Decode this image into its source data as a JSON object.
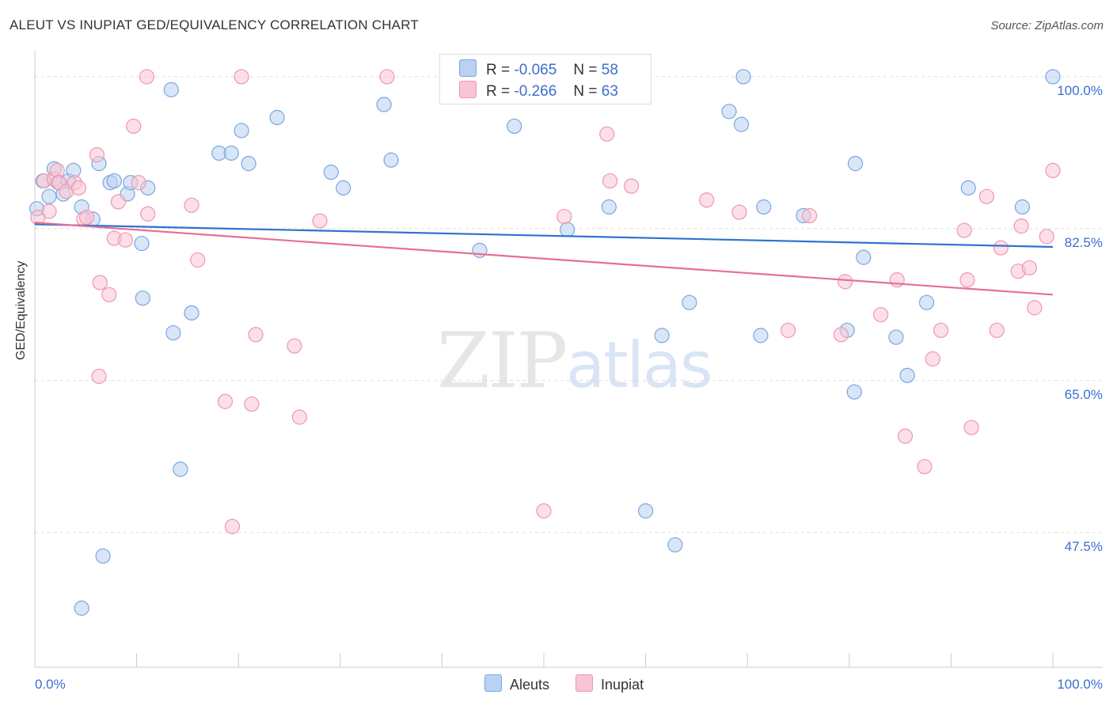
{
  "title": "ALEUT VS INUPIAT GED/EQUIVALENCY CORRELATION CHART",
  "source": "Source: ZipAtlas.com",
  "watermark": {
    "zip": "ZIP",
    "atlas": "atlas"
  },
  "colors": {
    "aleut_fill": "#b9d2f3",
    "aleut_stroke": "#7ba6e0",
    "aleut_line": "#2d74d0",
    "inupiat_fill": "#f9c4d4",
    "inupiat_stroke": "#ee97b3",
    "inupiat_line": "#e56f98",
    "grid": "#dddddd",
    "tick_label": "#3a6fcf"
  },
  "legend": {
    "aleut": {
      "r_label": "R =",
      "r_value": "-0.065",
      "n_label": "N =",
      "n_value": "58"
    },
    "inupiat": {
      "r_label": "R =",
      "r_value": "-0.266",
      "n_label": "N =",
      "n_value": "63"
    }
  },
  "chart_data": {
    "type": "scatter",
    "title": "ALEUT VS INUPIAT GED/EQUIVALENCY CORRELATION CHART",
    "xlabel": "",
    "ylabel": "GED/Equivalency",
    "xlim": [
      0,
      100
    ],
    "ylim": [
      32,
      103
    ],
    "x_tick_labels": [
      "0.0%",
      "100.0%"
    ],
    "y_ticks": [
      47.5,
      65.0,
      82.5,
      100.0
    ],
    "y_tick_labels": [
      "47.5%",
      "65.0%",
      "82.5%",
      "100.0%"
    ],
    "grid": true,
    "legend_position": "top-center",
    "series": [
      {
        "name": "Aleuts",
        "trend": {
          "x": [
            0,
            100
          ],
          "y": [
            83.0,
            80.4
          ]
        },
        "points": [
          [
            0.2,
            84.8
          ],
          [
            0.8,
            88.0
          ],
          [
            1.4,
            86.2
          ],
          [
            1.9,
            89.4
          ],
          [
            2.3,
            87.8
          ],
          [
            2.8,
            86.5
          ],
          [
            3.3,
            88.0
          ],
          [
            3.8,
            89.2
          ],
          [
            4.6,
            85.0
          ],
          [
            5.7,
            83.6
          ],
          [
            6.3,
            90.0
          ],
          [
            7.4,
            87.8
          ],
          [
            7.8,
            88.0
          ],
          [
            9.1,
            86.5
          ],
          [
            9.4,
            87.8
          ],
          [
            10.5,
            80.8
          ],
          [
            10.6,
            74.5
          ],
          [
            11.1,
            87.2
          ],
          [
            13.4,
            98.5
          ],
          [
            13.6,
            70.5
          ],
          [
            15.4,
            72.8
          ],
          [
            18.1,
            91.2
          ],
          [
            19.3,
            91.2
          ],
          [
            20.3,
            93.8
          ],
          [
            21.0,
            90.0
          ],
          [
            23.8,
            95.3
          ],
          [
            29.1,
            89.0
          ],
          [
            30.3,
            87.2
          ],
          [
            34.3,
            96.8
          ],
          [
            35.0,
            90.4
          ],
          [
            47.1,
            94.3
          ],
          [
            56.4,
            85.0
          ],
          [
            52.3,
            82.4
          ],
          [
            55.5,
            100.0
          ],
          [
            61.6,
            70.2
          ],
          [
            64.3,
            74.0
          ],
          [
            69.6,
            100.0
          ],
          [
            68.2,
            96.0
          ],
          [
            69.4,
            94.5
          ],
          [
            71.3,
            70.2
          ],
          [
            71.6,
            85.0
          ],
          [
            75.5,
            84.0
          ],
          [
            79.8,
            70.8
          ],
          [
            80.5,
            63.7
          ],
          [
            80.6,
            90.0
          ],
          [
            81.4,
            79.2
          ],
          [
            84.6,
            70.0
          ],
          [
            85.7,
            65.6
          ],
          [
            87.6,
            74.0
          ],
          [
            91.7,
            87.2
          ],
          [
            97.0,
            85.0
          ],
          [
            100.0,
            100.0
          ],
          [
            43.7,
            80.0
          ],
          [
            14.3,
            54.8
          ],
          [
            6.7,
            44.8
          ],
          [
            4.6,
            38.8
          ],
          [
            60.0,
            50.0
          ],
          [
            62.9,
            46.1
          ]
        ]
      },
      {
        "name": "Inupiat",
        "trend": {
          "x": [
            0,
            100
          ],
          "y": [
            83.2,
            74.9
          ]
        },
        "points": [
          [
            0.3,
            83.8
          ],
          [
            0.9,
            88.0
          ],
          [
            1.4,
            84.5
          ],
          [
            1.9,
            88.2
          ],
          [
            2.2,
            89.2
          ],
          [
            2.4,
            87.8
          ],
          [
            3.1,
            86.8
          ],
          [
            3.9,
            87.8
          ],
          [
            4.3,
            87.2
          ],
          [
            4.8,
            83.6
          ],
          [
            5.1,
            83.8
          ],
          [
            6.1,
            91.0
          ],
          [
            6.4,
            76.3
          ],
          [
            7.3,
            74.9
          ],
          [
            7.8,
            81.4
          ],
          [
            8.2,
            85.6
          ],
          [
            8.9,
            81.2
          ],
          [
            9.7,
            94.3
          ],
          [
            10.2,
            87.8
          ],
          [
            11.1,
            84.2
          ],
          [
            11.0,
            100.0
          ],
          [
            15.4,
            85.2
          ],
          [
            16.0,
            78.9
          ],
          [
            18.7,
            62.6
          ],
          [
            19.4,
            48.2
          ],
          [
            20.3,
            100.0
          ],
          [
            21.3,
            62.3
          ],
          [
            21.7,
            70.3
          ],
          [
            25.5,
            69.0
          ],
          [
            26.0,
            60.8
          ],
          [
            28.0,
            83.4
          ],
          [
            34.6,
            100.0
          ],
          [
            6.3,
            65.5
          ],
          [
            46.2,
            100.0
          ],
          [
            50.0,
            50.0
          ],
          [
            52.0,
            83.9
          ],
          [
            56.2,
            93.4
          ],
          [
            56.5,
            88.0
          ],
          [
            58.6,
            87.4
          ],
          [
            66.0,
            85.8
          ],
          [
            69.2,
            84.4
          ],
          [
            74.0,
            70.8
          ],
          [
            76.1,
            84.0
          ],
          [
            79.2,
            70.3
          ],
          [
            79.6,
            76.4
          ],
          [
            83.1,
            72.6
          ],
          [
            84.7,
            76.6
          ],
          [
            85.5,
            58.6
          ],
          [
            87.4,
            55.1
          ],
          [
            88.2,
            67.5
          ],
          [
            89.0,
            70.8
          ],
          [
            91.3,
            82.3
          ],
          [
            91.6,
            76.6
          ],
          [
            92.0,
            59.6
          ],
          [
            93.5,
            86.2
          ],
          [
            94.5,
            70.8
          ],
          [
            94.9,
            80.3
          ],
          [
            96.6,
            77.6
          ],
          [
            96.9,
            82.8
          ],
          [
            97.7,
            78.0
          ],
          [
            98.2,
            73.4
          ],
          [
            99.4,
            81.6
          ],
          [
            100.0,
            89.2
          ]
        ]
      }
    ]
  }
}
